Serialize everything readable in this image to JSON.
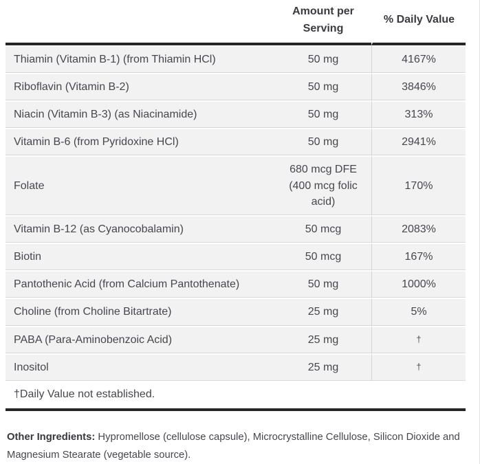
{
  "panel": {
    "table": {
      "headers": {
        "ingredient": "",
        "amount": "Amount per Serving",
        "daily_value": "% Daily Value"
      },
      "rows": [
        {
          "name": "Thiamin (Vitamin B-1) (from Thiamin HCl)",
          "amount": "50 mg",
          "daily_value": "4167%"
        },
        {
          "name": "Riboflavin (Vitamin B-2)",
          "amount": "50 mg",
          "daily_value": "3846%"
        },
        {
          "name": "Niacin (Vitamin B-3) (as Niacinamide)",
          "amount": "50 mg",
          "daily_value": "313%"
        },
        {
          "name": "Vitamin B-6 (from Pyridoxine HCl)",
          "amount": "50 mg",
          "daily_value": "2941%"
        },
        {
          "name": "Folate",
          "amount": "680 mcg DFE (400 mcg folic acid)",
          "daily_value": "170%"
        },
        {
          "name": "Vitamin B-12 (as Cyanocobalamin)",
          "amount": "50 mcg",
          "daily_value": "2083%"
        },
        {
          "name": "Biotin",
          "amount": "50 mcg",
          "daily_value": "167%"
        },
        {
          "name": "Pantothenic Acid (from Calcium Pantothenate)",
          "amount": "50 mg",
          "daily_value": "1000%"
        },
        {
          "name": "Choline (from Choline Bitartrate)",
          "amount": "25 mg",
          "daily_value": "5%"
        },
        {
          "name": "PABA (Para-Aminobenzoic Acid)",
          "amount": "25 mg",
          "daily_value": "†"
        },
        {
          "name": "Inositol",
          "amount": "25 mg",
          "daily_value": "†"
        }
      ],
      "footnote": "†Daily Value not established."
    },
    "other_ingredients": {
      "label": "Other Ingredients:",
      "text": "Hypromellose (cellulose capsule), Microcrystalline Cellulose, Silicon Dioxide and Magnesium Stearate (vegetable source)."
    },
    "colors": {
      "row_background": "#f2f2f3",
      "divider": "#d9d9da",
      "heavy_rule": "#262626",
      "text": "#46464e"
    }
  }
}
